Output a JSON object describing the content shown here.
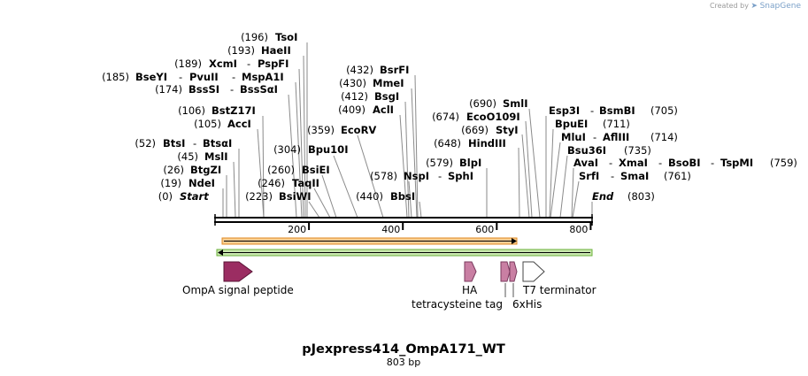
{
  "credit": {
    "prefix": "Created by",
    "brand": "SnapGene"
  },
  "map": {
    "title": "pJexpress414_OmpA171_WT",
    "length_label": "803 bp",
    "length": 803,
    "ticks": [
      {
        "value": 200,
        "label": "200"
      },
      {
        "value": 400,
        "label": "400"
      },
      {
        "value": 600,
        "label": "600"
      },
      {
        "value": 800,
        "label": "800"
      }
    ]
  },
  "sites_left": [
    {
      "pos": "(196)",
      "name": "TsoI"
    },
    {
      "pos": "(193)",
      "name": "HaeII"
    },
    {
      "pos": "(189)",
      "name": "XcmI",
      "name2": "PspFI"
    },
    {
      "pos": "(185)",
      "name": "BseYI",
      "name2": "PvuII",
      "name3": "MspA1I"
    },
    {
      "pos": "(174)",
      "name": "BssSI",
      "name2": "BssSαI"
    },
    {
      "pos": "(106)",
      "name": "BstZ17I"
    },
    {
      "pos": "(105)",
      "name": "AccI"
    },
    {
      "pos": "(52)",
      "name": "BtsI",
      "name2": "BtsαI"
    },
    {
      "pos": "(45)",
      "name": "MslI"
    },
    {
      "pos": "(26)",
      "name": "BtgZI"
    },
    {
      "pos": "(19)",
      "name": "NdeI"
    },
    {
      "pos": "(0)",
      "name": "Start"
    }
  ],
  "sites_mid": [
    {
      "pos": "(359)",
      "name": "EcoRV"
    },
    {
      "pos": "(304)",
      "name": "Bpu10I"
    },
    {
      "pos": "(260)",
      "name": "BsiEI"
    },
    {
      "pos": "(246)",
      "name": "TaqII"
    },
    {
      "pos": "(223)",
      "name": "BsiWI"
    }
  ],
  "sites_center": [
    {
      "pos": "(432)",
      "name": "BsrFI"
    },
    {
      "pos": "(430)",
      "name": "MmeI"
    },
    {
      "pos": "(412)",
      "name": "BsgI"
    },
    {
      "pos": "(409)",
      "name": "AclI"
    },
    {
      "pos": "(578)",
      "name": "NspI",
      "name2": "SphI"
    },
    {
      "pos": "(440)",
      "name": "BbsI"
    }
  ],
  "sites_right": [
    {
      "pos": "(690)",
      "name": "SmlI"
    },
    {
      "pos": "(674)",
      "name": "EcoO109I"
    },
    {
      "pos": "(669)",
      "name": "StyI"
    },
    {
      "pos": "(648)",
      "name": "HindIII"
    },
    {
      "pos": "(579)",
      "name": "BlpI"
    }
  ],
  "sites_far": [
    {
      "name": "Esp3I",
      "name2": "BsmBI",
      "pos": "(705)"
    },
    {
      "name": "BpuEI",
      "pos": "(711)"
    },
    {
      "name": "MluI",
      "name2": "AflIII",
      "pos": "(714)"
    },
    {
      "name": "Bsu36I",
      "pos": "(735)"
    },
    {
      "name": "AvaI",
      "name2": "XmaI",
      "name3": "BsoBI",
      "name4": "TspMI",
      "pos": "(759)"
    },
    {
      "name": "SrfI",
      "name2": "SmaI",
      "pos": "(761)"
    },
    {
      "name": "End",
      "pos": "(803)"
    }
  ],
  "features": [
    {
      "name": "OmpA signal peptide",
      "color": "#9b2d62"
    },
    {
      "name": "HA",
      "color": "#c97fa3"
    },
    {
      "name": "tetracysteine tag",
      "color": "#c97fa3"
    },
    {
      "name": "6xHis",
      "color": "#c97fa3"
    },
    {
      "name": "T7 terminator",
      "color": "#ffffff"
    }
  ],
  "colors": {
    "orf_forward": "#f0a63a",
    "orf_reverse": "#a6d87a"
  }
}
